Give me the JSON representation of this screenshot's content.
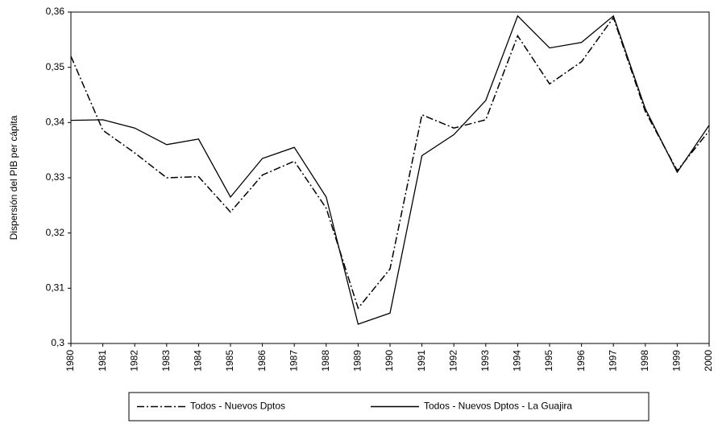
{
  "chart_data": {
    "type": "line",
    "y_label": "Dispersión del PIB per cápita",
    "categories": [
      "1980",
      "1981",
      "1982",
      "1983",
      "1984",
      "1985",
      "1986",
      "1987",
      "1988",
      "1989",
      "1990",
      "1991",
      "1992",
      "1993",
      "1994",
      "1995",
      "1996",
      "1997",
      "1998",
      "1999",
      "2000"
    ],
    "series": [
      {
        "name": "Todos - Nuevos Dptos",
        "color": "#000000",
        "dash": "dashdot",
        "values": [
          0.352,
          0.3386,
          0.3345,
          0.33,
          0.3302,
          0.3238,
          0.3305,
          0.333,
          0.3245,
          0.3064,
          0.3135,
          0.3414,
          0.339,
          0.3405,
          0.3557,
          0.347,
          0.351,
          0.359,
          0.342,
          0.3313,
          0.3385
        ]
      },
      {
        "name": "Todos - Nuevos Dptos - La Guajira",
        "color": "#000000",
        "dash": "solid",
        "values": [
          0.3404,
          0.3405,
          0.339,
          0.336,
          0.337,
          0.3265,
          0.3335,
          0.3355,
          0.3265,
          0.3035,
          0.3055,
          0.334,
          0.3378,
          0.344,
          0.3593,
          0.3535,
          0.3545,
          0.3593,
          0.3425,
          0.331,
          0.3395
        ]
      }
    ],
    "ylim": [
      0.3,
      0.36
    ],
    "yticks": [
      {
        "value": 0.3,
        "label": "0,3"
      },
      {
        "value": 0.31,
        "label": "0,31"
      },
      {
        "value": 0.32,
        "label": "0,32"
      },
      {
        "value": 0.33,
        "label": "0,33"
      },
      {
        "value": 0.34,
        "label": "0,34"
      },
      {
        "value": 0.35,
        "label": "0,35"
      },
      {
        "value": 0.36,
        "label": "0,36"
      }
    ],
    "grid": false,
    "legend": "bottom"
  }
}
